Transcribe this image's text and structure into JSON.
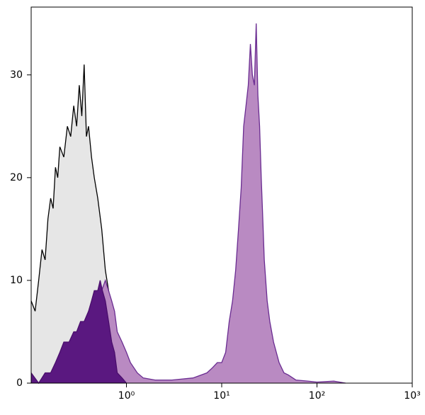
{
  "chart_data": {
    "type": "area",
    "xscale": "log",
    "xlim": [
      0.1,
      1000
    ],
    "xticks": [
      {
        "value": 1,
        "label": "10⁰"
      },
      {
        "value": 10,
        "label": "10¹"
      },
      {
        "value": 100,
        "label": "10²"
      },
      {
        "value": 1000,
        "label": "10³"
      }
    ],
    "ylim": [
      0,
      36.6
    ],
    "yticks": [
      0,
      10,
      20,
      30
    ],
    "series": [
      {
        "color": "#e6e6e6",
        "line_color": "#000000",
        "x": [
          0.1,
          0.11,
          0.12,
          0.13,
          0.14,
          0.15,
          0.16,
          0.17,
          0.18,
          0.19,
          0.2,
          0.22,
          0.24,
          0.26,
          0.28,
          0.3,
          0.32,
          0.34,
          0.36,
          0.38,
          0.4,
          0.43,
          0.46,
          0.5,
          0.55,
          0.6,
          0.65,
          0.7,
          0.8,
          0.9,
          1.0
        ],
        "values": [
          8,
          7,
          10,
          13,
          12,
          16,
          18,
          17,
          21,
          20,
          23,
          22,
          25,
          24,
          27,
          25,
          29,
          26,
          31,
          24,
          25,
          22,
          20,
          18,
          15,
          11,
          9,
          7,
          4,
          2,
          0
        ]
      },
      {
        "color": "#b98ac2",
        "line_color": "#6a2c91",
        "x": [
          0.35,
          0.4,
          0.45,
          0.5,
          0.55,
          0.6,
          0.65,
          0.7,
          0.75,
          0.8,
          0.9,
          1.0,
          1.1,
          1.3,
          1.5,
          2,
          3,
          5,
          7,
          8,
          9,
          10,
          11,
          12,
          13,
          14,
          15,
          16,
          17,
          18,
          19,
          20,
          21,
          22,
          23,
          24,
          25,
          26,
          27,
          28,
          30,
          32,
          35,
          40,
          45,
          50,
          60,
          80,
          100,
          150,
          200
        ],
        "values": [
          0,
          2,
          5,
          7,
          9,
          10,
          9,
          8,
          7,
          5,
          4,
          3,
          2,
          1,
          0.5,
          0.3,
          0.3,
          0.5,
          1,
          1.5,
          2,
          2,
          3,
          6,
          8,
          11,
          15,
          19,
          25,
          27,
          29,
          33,
          30,
          29,
          35,
          28,
          25,
          20,
          16,
          12,
          8,
          6,
          4,
          2,
          1,
          0.8,
          0.3,
          0.2,
          0.1,
          0.2,
          0
        ]
      },
      {
        "color": "#5a1880",
        "line_color": "#4a0e6c",
        "x": [
          0.1,
          0.12,
          0.14,
          0.16,
          0.18,
          0.2,
          0.22,
          0.25,
          0.28,
          0.3,
          0.33,
          0.36,
          0.4,
          0.43,
          0.46,
          0.5,
          0.53,
          0.56,
          0.6,
          0.65,
          0.7,
          0.75,
          0.8,
          0.9,
          1.0
        ],
        "values": [
          1,
          0,
          1,
          1,
          2,
          3,
          4,
          4,
          5,
          5,
          6,
          6,
          7,
          8,
          9,
          9,
          10,
          9,
          8,
          6,
          4,
          3,
          1,
          0.5,
          0
        ]
      }
    ]
  }
}
